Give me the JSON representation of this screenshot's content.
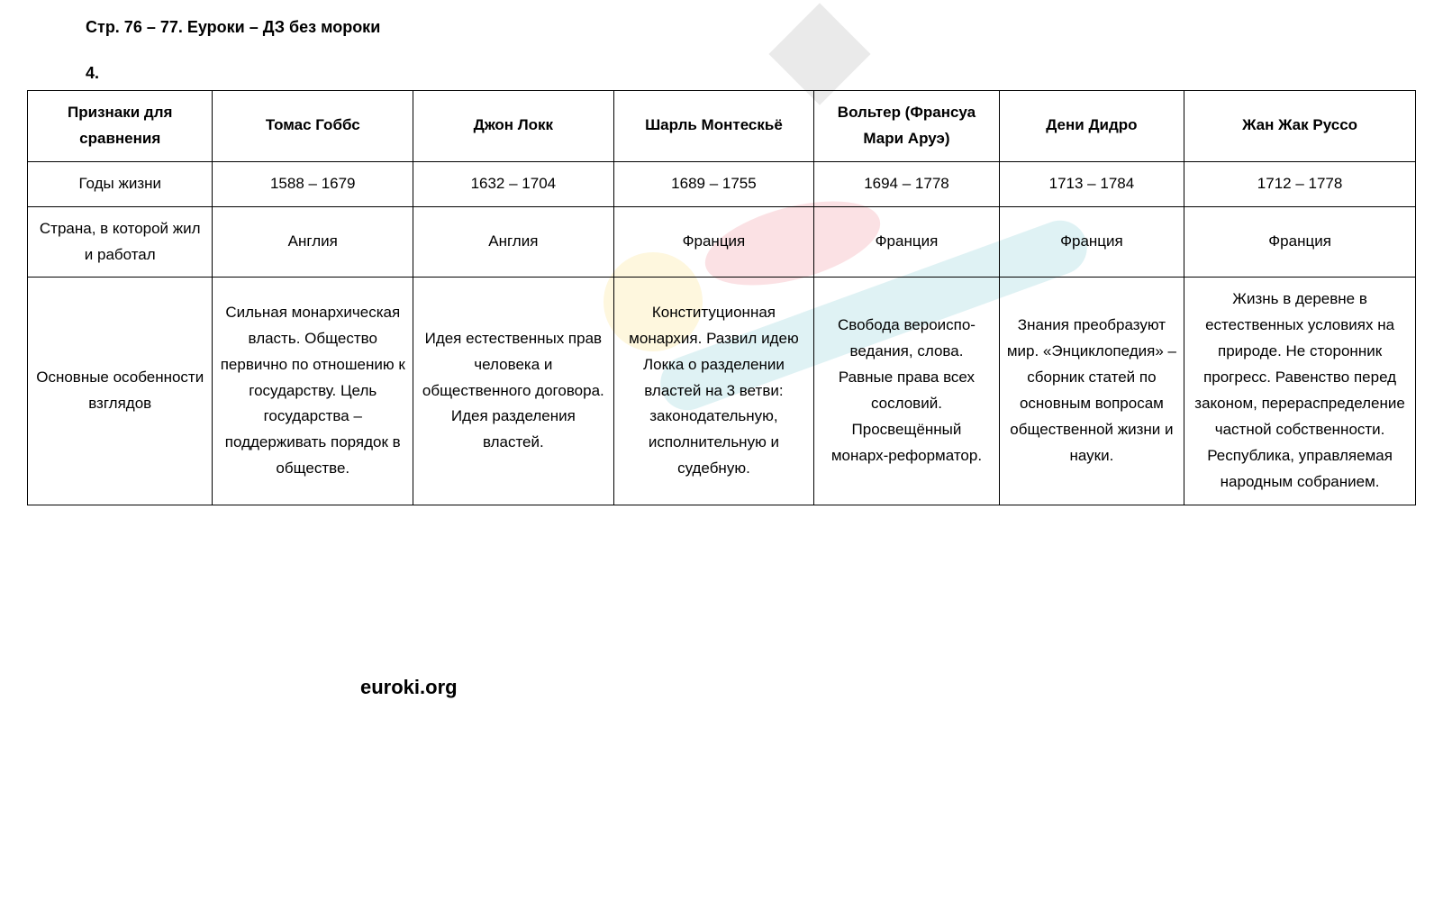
{
  "header": {
    "title": "Стр. 76 – 77. Еуроки – ДЗ без мороки",
    "question_number": "4."
  },
  "watermark": {
    "text": "euroki.org",
    "colors": {
      "diamond": "#888888",
      "yellow": "#f7d54a",
      "red": "#e85a6b",
      "teal": "#4bb8c4"
    }
  },
  "table": {
    "border_color": "#000000",
    "font_size": 17,
    "text_color": "#000000",
    "columns": [
      "Признаки для сравнения",
      "Томас Гоббс",
      "Джон Локк",
      "Шарль Монтескьё",
      "Вольтер (Франсуа Мари Аруэ)",
      "Дени Дидро",
      "Жан Жак Руссо"
    ],
    "rows": [
      {
        "label": "Годы жизни",
        "cells": [
          "1588 – 1679",
          "1632 – 1704",
          "1689 – 1755",
          "1694 – 1778",
          "1713 – 1784",
          "1712 – 1778"
        ]
      },
      {
        "label": "Страна, в которой жил и работал",
        "cells": [
          "Англия",
          "Англия",
          "Франция",
          "Франция",
          "Франция",
          "Франция"
        ]
      },
      {
        "label": "Основные особенности взглядов",
        "cells": [
          "Сильная монархическая власть. Общество первично по отношению к государству. Цель государства – поддерживать порядок в обществе.",
          "Идея естественных прав человека и общественного договора. Идея разделения властей.",
          "Конституционная монархия. Развил идею Локка о разделении властей на 3 ветви: законодательную, исполнительную и судебную.",
          "Свобода вероиспо-ведания, слова. Равные права всех сословий. Просвещённый монарх-реформатор.",
          "Знания преобразуют мир. «Энциклопедия» – сборник статей по основным вопросам общественной жизни и науки.",
          "Жизнь в деревне в естественных условиях на природе. Не сторонник прогресс. Равенство перед законом, перераспределение частной собственности. Республика, управляемая народным собранием."
        ]
      }
    ]
  }
}
